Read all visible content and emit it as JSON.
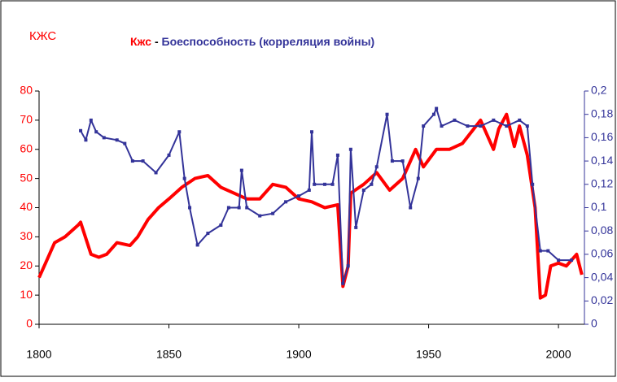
{
  "chart_data": {
    "type": "line",
    "corner_label": "КЖС",
    "legend_separator": "-",
    "xlim": [
      1800,
      2010
    ],
    "xticks": [
      1800,
      1850,
      1900,
      1950,
      2000
    ],
    "ylim": [
      0,
      80
    ],
    "yticks": [
      0,
      10,
      20,
      30,
      40,
      50,
      60,
      70,
      80
    ],
    "y2lim": [
      0,
      0.2
    ],
    "y2ticks": [
      0,
      {
        "value": 0.02,
        "label": "0,02"
      },
      {
        "value": 0.04,
        "label": "0,04"
      },
      {
        "value": 0.06,
        "label": "0,06"
      },
      {
        "value": 0.08,
        "label": "0,08"
      },
      {
        "value": 0.1,
        "label": "0,1"
      },
      {
        "value": 0.12,
        "label": "0,12"
      },
      {
        "value": 0.14,
        "label": "0,14"
      },
      {
        "value": 0.16,
        "label": "0,16"
      },
      {
        "value": 0.18,
        "label": "0,18"
      },
      {
        "value": 0.2,
        "label": "0,2"
      }
    ],
    "series": [
      {
        "name": "Кжс",
        "color": "#ff0000",
        "axis": "y",
        "x": [
          1800,
          1803,
          1806,
          1810,
          1815,
          1816,
          1820,
          1823,
          1826,
          1830,
          1835,
          1838,
          1842,
          1846,
          1850,
          1855,
          1860,
          1865,
          1870,
          1875,
          1880,
          1885,
          1890,
          1895,
          1900,
          1905,
          1910,
          1915,
          1917,
          1919,
          1920,
          1925,
          1930,
          1935,
          1940,
          1945,
          1948,
          1953,
          1958,
          1963,
          1970,
          1975,
          1977,
          1980,
          1983,
          1985,
          1988,
          1991,
          1993,
          1995,
          1997,
          2000,
          2003,
          2007,
          2009
        ],
        "values": [
          16,
          22,
          28,
          30,
          34,
          35,
          24,
          23,
          24,
          28,
          27,
          30,
          36,
          40,
          43,
          47,
          50,
          51,
          47,
          45,
          43,
          43,
          48,
          47,
          43,
          42,
          40,
          41,
          13,
          20,
          45,
          48,
          52,
          46,
          50,
          60,
          54,
          60,
          60,
          62,
          70,
          60,
          67,
          72,
          61,
          68,
          58,
          40,
          9,
          10,
          20,
          21,
          20,
          24,
          17
        ]
      },
      {
        "name": "Боеспособность (корреляция войны)",
        "color": "#333399",
        "axis": "y2",
        "x": [
          1816,
          1818,
          1820,
          1822,
          1825,
          1830,
          1833,
          1836,
          1840,
          1845,
          1850,
          1854,
          1856,
          1858,
          1861,
          1865,
          1870,
          1873,
          1877,
          1878,
          1880,
          1885,
          1890,
          1895,
          1900,
          1904,
          1905,
          1906,
          1910,
          1913,
          1915,
          1917,
          1919,
          1920,
          1922,
          1925,
          1928,
          1930,
          1934,
          1936,
          1940,
          1943,
          1946,
          1948,
          1952,
          1953,
          1955,
          1960,
          1965,
          1970,
          1975,
          1980,
          1985,
          1988,
          1990,
          1993,
          1996,
          2000,
          2005
        ],
        "values": [
          0.166,
          0.158,
          0.175,
          0.165,
          0.16,
          0.158,
          0.155,
          0.14,
          0.14,
          0.13,
          0.145,
          0.165,
          0.125,
          0.1,
          0.068,
          0.078,
          0.085,
          0.1,
          0.1,
          0.132,
          0.1,
          0.093,
          0.095,
          0.105,
          0.11,
          0.115,
          0.165,
          0.12,
          0.12,
          0.12,
          0.145,
          0.035,
          0.05,
          0.15,
          0.083,
          0.115,
          0.12,
          0.135,
          0.18,
          0.14,
          0.14,
          0.1,
          0.125,
          0.17,
          0.18,
          0.185,
          0.17,
          0.175,
          0.17,
          0.17,
          0.175,
          0.17,
          0.175,
          0.17,
          0.12,
          0.063,
          0.063,
          0.055,
          0.055
        ]
      }
    ]
  }
}
